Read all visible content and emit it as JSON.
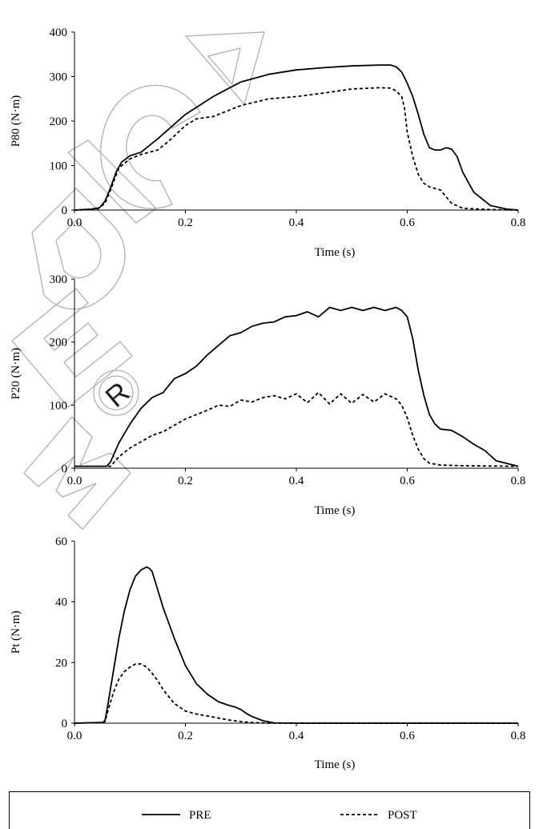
{
  "figure": {
    "legend": {
      "entries": [
        {
          "label": "PRE",
          "style": "solid"
        },
        {
          "label": "POST",
          "style": "dashed"
        }
      ]
    },
    "watermark": {
      "text": "MEDICA",
      "registered_symbol": "®"
    }
  },
  "chart_data": [
    {
      "type": "line",
      "ylabel": "P80 (N·m)",
      "xlabel": "Time (s)",
      "xlim": [
        0.0,
        0.8
      ],
      "ylim": [
        0,
        400
      ],
      "xticks": [
        "0.0",
        "0.2",
        "0.4",
        "0.6",
        "0.8"
      ],
      "yticks": [
        "0",
        "100",
        "200",
        "300",
        "400"
      ],
      "grid": false,
      "series": [
        {
          "name": "PRE",
          "style": "solid",
          "x": [
            0.0,
            0.03,
            0.045,
            0.055,
            0.065,
            0.075,
            0.085,
            0.1,
            0.12,
            0.15,
            0.2,
            0.25,
            0.28,
            0.3,
            0.35,
            0.4,
            0.45,
            0.5,
            0.55,
            0.57,
            0.58,
            0.59,
            0.6,
            0.61,
            0.62,
            0.63,
            0.64,
            0.65,
            0.66,
            0.67,
            0.68,
            0.69,
            0.7,
            0.72,
            0.75,
            0.78,
            0.8
          ],
          "y": [
            0,
            2,
            5,
            20,
            50,
            85,
            108,
            122,
            130,
            160,
            215,
            255,
            275,
            288,
            305,
            315,
            320,
            324,
            326,
            326,
            322,
            310,
            285,
            255,
            215,
            170,
            140,
            135,
            135,
            140,
            137,
            120,
            85,
            40,
            10,
            2,
            0
          ]
        },
        {
          "name": "POST",
          "style": "dashed",
          "x": [
            0.0,
            0.04,
            0.055,
            0.065,
            0.08,
            0.1,
            0.12,
            0.15,
            0.17,
            0.2,
            0.22,
            0.25,
            0.3,
            0.35,
            0.4,
            0.45,
            0.5,
            0.55,
            0.57,
            0.58,
            0.59,
            0.595,
            0.6,
            0.61,
            0.62,
            0.63,
            0.64,
            0.66,
            0.67,
            0.68,
            0.7,
            0.75,
            0.8
          ],
          "y": [
            0,
            1,
            15,
            45,
            95,
            115,
            125,
            135,
            155,
            190,
            205,
            210,
            235,
            250,
            255,
            263,
            272,
            275,
            274,
            268,
            255,
            230,
            175,
            120,
            80,
            60,
            52,
            45,
            30,
            15,
            4,
            1,
            0
          ]
        }
      ]
    },
    {
      "type": "line",
      "ylabel": "P20 (N·m)",
      "xlabel": "Time (s)",
      "xlim": [
        0.0,
        0.8
      ],
      "ylim": [
        0,
        300
      ],
      "xticks": [
        "0.0",
        "0.2",
        "0.4",
        "0.6",
        "0.8"
      ],
      "yticks": [
        "0",
        "100",
        "200",
        "300"
      ],
      "grid": false,
      "series": [
        {
          "name": "PRE",
          "style": "solid",
          "x": [
            0.0,
            0.058,
            0.065,
            0.08,
            0.1,
            0.12,
            0.14,
            0.16,
            0.18,
            0.2,
            0.22,
            0.24,
            0.26,
            0.28,
            0.3,
            0.32,
            0.34,
            0.36,
            0.38,
            0.4,
            0.42,
            0.44,
            0.46,
            0.48,
            0.5,
            0.52,
            0.54,
            0.56,
            0.58,
            0.59,
            0.6,
            0.61,
            0.62,
            0.63,
            0.64,
            0.65,
            0.66,
            0.68,
            0.7,
            0.72,
            0.74,
            0.76,
            0.8
          ],
          "y": [
            3,
            3,
            10,
            40,
            70,
            95,
            112,
            120,
            142,
            150,
            162,
            180,
            195,
            210,
            215,
            225,
            230,
            232,
            240,
            242,
            248,
            240,
            255,
            250,
            255,
            250,
            255,
            250,
            255,
            250,
            240,
            205,
            155,
            115,
            85,
            70,
            62,
            60,
            50,
            38,
            28,
            12,
            3
          ]
        },
        {
          "name": "POST",
          "style": "dashed",
          "x": [
            0.0,
            0.065,
            0.08,
            0.1,
            0.12,
            0.14,
            0.16,
            0.18,
            0.2,
            0.22,
            0.24,
            0.26,
            0.28,
            0.3,
            0.32,
            0.34,
            0.36,
            0.38,
            0.4,
            0.42,
            0.44,
            0.46,
            0.48,
            0.5,
            0.52,
            0.54,
            0.56,
            0.58,
            0.59,
            0.6,
            0.61,
            0.62,
            0.63,
            0.64,
            0.66,
            0.7,
            0.8
          ],
          "y": [
            3,
            3,
            18,
            32,
            42,
            52,
            58,
            68,
            78,
            85,
            92,
            100,
            98,
            108,
            105,
            112,
            115,
            110,
            118,
            104,
            120,
            102,
            118,
            103,
            117,
            105,
            118,
            110,
            100,
            80,
            52,
            30,
            15,
            8,
            5,
            4,
            3
          ]
        }
      ]
    },
    {
      "type": "line",
      "ylabel": "Pt (N·m)",
      "xlabel": "Time (s)",
      "xlim": [
        0.0,
        0.8
      ],
      "ylim": [
        0,
        60
      ],
      "xticks": [
        "0.0",
        "0.2",
        "0.4",
        "0.6",
        "0.8"
      ],
      "yticks": [
        "0",
        "20",
        "40",
        "60"
      ],
      "grid": false,
      "series": [
        {
          "name": "PRE",
          "style": "solid",
          "x": [
            0.0,
            0.05,
            0.055,
            0.06,
            0.07,
            0.08,
            0.09,
            0.1,
            0.11,
            0.12,
            0.13,
            0.135,
            0.14,
            0.15,
            0.16,
            0.18,
            0.2,
            0.22,
            0.24,
            0.26,
            0.28,
            0.29,
            0.3,
            0.31,
            0.32,
            0.34,
            0.36,
            0.4,
            0.8
          ],
          "y": [
            0,
            0.2,
            0.8,
            6,
            17,
            28,
            37,
            44,
            48.5,
            50.5,
            51.5,
            51,
            50,
            44,
            38,
            28,
            19,
            13,
            9.5,
            7,
            5.8,
            5.3,
            4.5,
            3.2,
            2.2,
            0.8,
            0.1,
            0,
            0
          ]
        },
        {
          "name": "POST",
          "style": "dashed",
          "x": [
            0.0,
            0.05,
            0.055,
            0.06,
            0.07,
            0.08,
            0.09,
            0.1,
            0.11,
            0.12,
            0.13,
            0.14,
            0.15,
            0.16,
            0.18,
            0.2,
            0.22,
            0.25,
            0.28,
            0.3,
            0.32,
            0.35,
            0.4,
            0.8
          ],
          "y": [
            0,
            0.2,
            0.5,
            4,
            10,
            14.5,
            17,
            18.5,
            19.5,
            19.5,
            18.5,
            16.5,
            14,
            11,
            6.5,
            4,
            3,
            2,
            1,
            0.5,
            0.2,
            0,
            0,
            0
          ]
        }
      ]
    }
  ]
}
